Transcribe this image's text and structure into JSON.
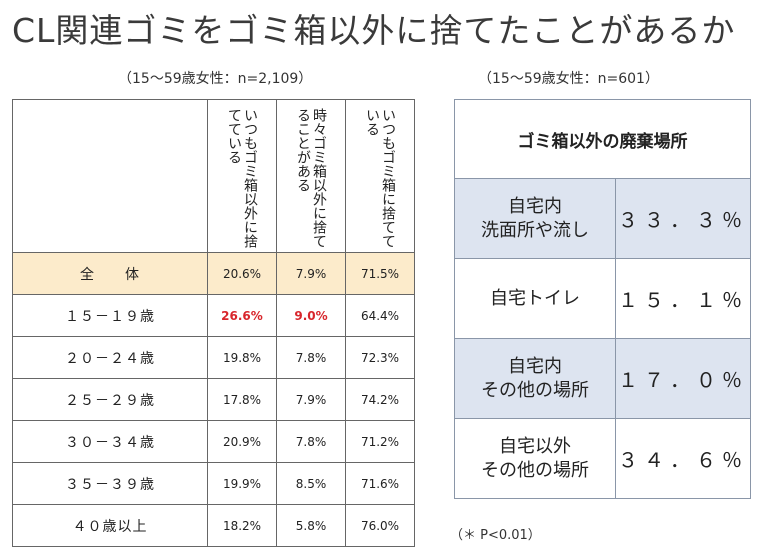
{
  "title": "CL関連ゴミをゴミ箱以外に捨てたことがあるか",
  "left_subtitle": "（15～59歳女性：n=2,109）",
  "right_subtitle": "（15～59歳女性：n=601）",
  "left_table": {
    "columns": [
      "いつもゴミ箱以外に捨てている",
      "時々ゴミ箱以外に捨てることがある",
      "いつもゴミ箱に捨てている"
    ],
    "rows": [
      {
        "label": "全　　体",
        "values": [
          "20.6%",
          "7.9%",
          "71.5%"
        ]
      },
      {
        "label": "１５－１９歳",
        "values": [
          "26.6%",
          "9.0%",
          "64.4%"
        ]
      },
      {
        "label": "２０－２４歳",
        "values": [
          "19.8%",
          "7.8%",
          "72.3%"
        ]
      },
      {
        "label": "２５－２９歳",
        "values": [
          "17.8%",
          "7.9%",
          "74.2%"
        ]
      },
      {
        "label": "３０－３４歳",
        "values": [
          "20.9%",
          "7.8%",
          "71.2%"
        ]
      },
      {
        "label": "３５－３９歳",
        "values": [
          "19.9%",
          "8.5%",
          "71.6%"
        ]
      },
      {
        "label": "４０歳以上",
        "values": [
          "18.2%",
          "5.8%",
          "76.0%"
        ]
      }
    ],
    "highlight_color": "#d8262c",
    "total_row_color": "#fcebcb"
  },
  "right_table": {
    "header": "ゴミ箱以外の廃棄場所",
    "rows": [
      {
        "place_line1": "自宅内",
        "place_line2": "洗面所や流し",
        "value": "３３．３％"
      },
      {
        "place_line1": "自宅トイレ",
        "place_line2": "",
        "value": "１５．１％"
      },
      {
        "place_line1": "自宅内",
        "place_line2": "その他の場所",
        "value": "１７．０％"
      },
      {
        "place_line1": "自宅以外",
        "place_line2": "その他の場所",
        "value": "３４．６％"
      }
    ],
    "shade_color": "#dde4f0"
  },
  "note": "（＊ P<0.01）"
}
